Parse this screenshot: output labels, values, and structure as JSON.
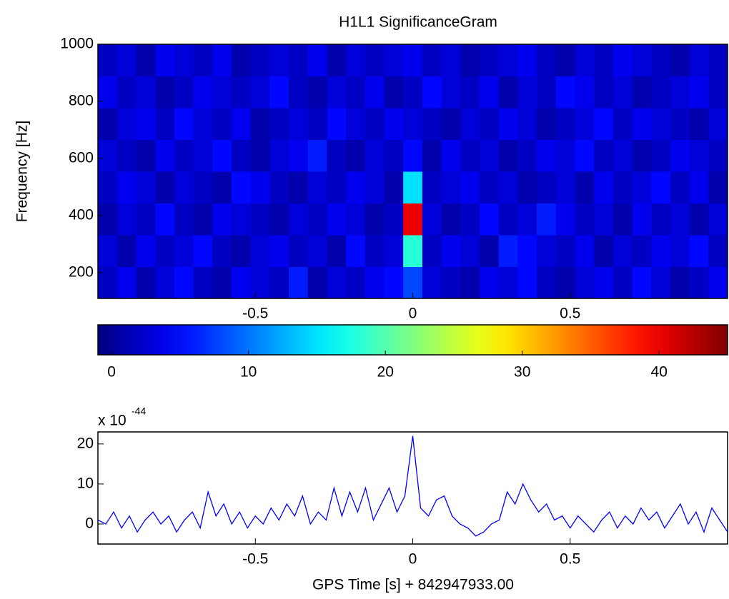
{
  "chart_data": [
    {
      "type": "heatmap",
      "title": "H1L1 SignificanceGram",
      "ylabel": "Frequency [Hz]",
      "xlim": [
        -1,
        1
      ],
      "ylim": [
        110,
        1000
      ],
      "xticks": [
        -0.5,
        0,
        0.5
      ],
      "yticks": [
        200,
        400,
        600,
        800,
        1000
      ],
      "colormap": "jet",
      "clim": [
        -1,
        45
      ],
      "z": [
        [
          2,
          4,
          1,
          3,
          5,
          2,
          1,
          4,
          3,
          2,
          6,
          1,
          3,
          2,
          4,
          5,
          8,
          3,
          2,
          1,
          4,
          3,
          5,
          2,
          1,
          3,
          4,
          2,
          5,
          3,
          1,
          2,
          4
        ],
        [
          3,
          1,
          4,
          2,
          3,
          5,
          2,
          1,
          3,
          4,
          2,
          3,
          1,
          5,
          2,
          3,
          18,
          2,
          4,
          3,
          1,
          6,
          5,
          3,
          2,
          4,
          1,
          3,
          2,
          4,
          3,
          5,
          2
        ],
        [
          1,
          3,
          2,
          5,
          2,
          1,
          4,
          3,
          2,
          1,
          3,
          2,
          4,
          3,
          1,
          2,
          40,
          3,
          1,
          2,
          5,
          2,
          3,
          6,
          4,
          2,
          3,
          1,
          4,
          2,
          3,
          1,
          3
        ],
        [
          2,
          4,
          3,
          1,
          3,
          2,
          1,
          5,
          4,
          2,
          1,
          3,
          2,
          4,
          3,
          1,
          15,
          2,
          3,
          4,
          2,
          3,
          1,
          2,
          3,
          1,
          4,
          2,
          3,
          5,
          2,
          4,
          1
        ],
        [
          3,
          2,
          1,
          4,
          2,
          3,
          5,
          2,
          1,
          3,
          4,
          6,
          2,
          1,
          3,
          2,
          5,
          1,
          4,
          2,
          3,
          1,
          2,
          4,
          3,
          5,
          2,
          3,
          1,
          2,
          4,
          3,
          2
        ],
        [
          1,
          3,
          4,
          2,
          5,
          3,
          2,
          4,
          1,
          2,
          3,
          2,
          5,
          3,
          2,
          4,
          3,
          2,
          1,
          3,
          2,
          4,
          3,
          1,
          2,
          3,
          5,
          2,
          4,
          3,
          2,
          1,
          3
        ],
        [
          4,
          2,
          3,
          1,
          2,
          4,
          3,
          2,
          3,
          5,
          2,
          1,
          3,
          2,
          4,
          1,
          2,
          5,
          3,
          2,
          4,
          1,
          3,
          2,
          5,
          4,
          2,
          3,
          1,
          2,
          3,
          4,
          2
        ],
        [
          2,
          3,
          1,
          4,
          3,
          2,
          4,
          1,
          2,
          3,
          2,
          4,
          1,
          3,
          2,
          3,
          4,
          2,
          3,
          1,
          2,
          3,
          4,
          2,
          1,
          3,
          2,
          4,
          3,
          2,
          1,
          3,
          2
        ]
      ]
    },
    {
      "type": "colorbar",
      "colormap": "jet",
      "xlim": [
        -1,
        45
      ],
      "xticks": [
        0,
        10,
        20,
        30,
        40
      ]
    },
    {
      "type": "line",
      "xlabel": "GPS Time [s] + 842947933.00",
      "y_multiplier": "x 10",
      "y_exponent": "-44",
      "xlim": [
        -1,
        1
      ],
      "ylim": [
        -5,
        23
      ],
      "xticks": [
        -0.5,
        0,
        0.5
      ],
      "yticks": [
        0,
        10,
        20
      ],
      "x": [
        -1,
        -0.975,
        -0.95,
        -0.925,
        -0.9,
        -0.875,
        -0.85,
        -0.825,
        -0.8,
        -0.775,
        -0.75,
        -0.725,
        -0.7,
        -0.675,
        -0.65,
        -0.625,
        -0.6,
        -0.575,
        -0.55,
        -0.525,
        -0.5,
        -0.475,
        -0.45,
        -0.425,
        -0.4,
        -0.375,
        -0.35,
        -0.325,
        -0.3,
        -0.275,
        -0.25,
        -0.225,
        -0.2,
        -0.175,
        -0.15,
        -0.125,
        -0.1,
        -0.075,
        -0.05,
        -0.025,
        0,
        0.025,
        0.05,
        0.075,
        0.1,
        0.125,
        0.15,
        0.175,
        0.2,
        0.225,
        0.25,
        0.275,
        0.3,
        0.325,
        0.35,
        0.375,
        0.4,
        0.425,
        0.45,
        0.475,
        0.5,
        0.525,
        0.55,
        0.575,
        0.6,
        0.625,
        0.65,
        0.675,
        0.7,
        0.725,
        0.75,
        0.775,
        0.8,
        0.825,
        0.85,
        0.875,
        0.9,
        0.925,
        0.95,
        0.975,
        1
      ],
      "series": [
        {
          "color": "#0000ff",
          "values": [
            1,
            0,
            3,
            -1,
            2,
            -2,
            1,
            3,
            0,
            2,
            -2,
            1,
            3,
            -1,
            8,
            2,
            5,
            0,
            3,
            -1,
            2,
            0,
            4,
            1,
            5,
            2,
            7,
            0,
            3,
            1,
            9,
            2,
            8,
            3,
            9,
            1,
            5,
            9,
            3,
            7,
            22,
            4,
            2,
            6,
            7,
            2,
            0,
            -1,
            -3,
            -2,
            0,
            1,
            8,
            5,
            10,
            6,
            3,
            5,
            1,
            2,
            -1,
            2,
            0,
            -2,
            1,
            3,
            -1,
            2,
            0,
            4,
            1,
            3,
            -1,
            2,
            5,
            0,
            3,
            -2,
            4,
            1,
            -2
          ]
        }
      ]
    }
  ]
}
